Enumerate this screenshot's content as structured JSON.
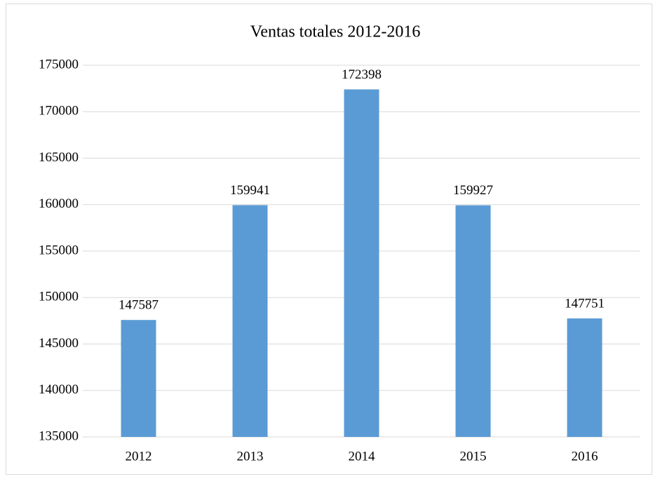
{
  "chart_data": {
    "type": "bar",
    "title": "Ventas totales 2012-2016",
    "categories": [
      "2012",
      "2013",
      "2014",
      "2015",
      "2016"
    ],
    "values": [
      147587,
      159941,
      172398,
      159927,
      147751
    ],
    "color": "#5b9bd5",
    "ylim": [
      135000,
      175000
    ],
    "yticks": [
      135000,
      140000,
      145000,
      150000,
      155000,
      160000,
      165000,
      170000,
      175000
    ],
    "grid": true
  }
}
